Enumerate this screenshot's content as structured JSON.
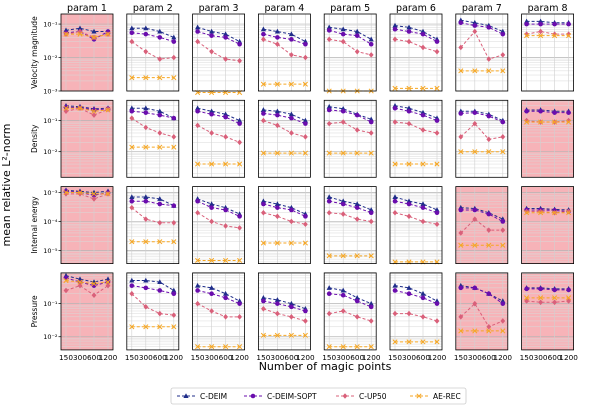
{
  "chart_data": {
    "type": "line",
    "ylabel": "mean relative L²-norm",
    "xlabel": "Number of magic points",
    "yscale": "log",
    "x": [
      150,
      300,
      600,
      1200
    ],
    "xticks": [
      "150",
      "300",
      "600",
      "1200"
    ],
    "grid": true,
    "legend_position": "bottom",
    "columns": [
      "param 1",
      "param 2",
      "param 3",
      "param 4",
      "param 5",
      "param 6",
      "param 7",
      "param 8"
    ],
    "rows": [
      {
        "label": "Velocity magnitude",
        "ylim": [
          0.001,
          0.2
        ],
        "yticks": [
          {
            "v": 0.1,
            "t": "10⁻¹"
          },
          {
            "v": 0.01,
            "t": "10⁻²"
          },
          {
            "v": 0.001,
            "t": "10⁻³"
          }
        ]
      },
      {
        "label": "Density",
        "ylim": [
          0.0015,
          0.45
        ],
        "yticks": [
          {
            "v": 0.1,
            "t": "10⁻¹"
          },
          {
            "v": 0.01,
            "t": "10⁻²"
          }
        ]
      },
      {
        "label": "Internal energy",
        "ylim": [
          3.5e-06,
          0.0016
        ],
        "yticks": [
          {
            "v": 0.001,
            "t": "10⁻³"
          },
          {
            "v": 0.0001,
            "t": "10⁻⁴"
          },
          {
            "v": 1e-05,
            "t": "10⁻⁵"
          }
        ]
      },
      {
        "label": "Pressure",
        "ylim": [
          0.004,
          0.85
        ],
        "yticks": [
          {
            "v": 0.1,
            "t": "10⁻¹"
          },
          {
            "v": 0.01,
            "t": "10⁻²"
          }
        ]
      }
    ],
    "highlighted": [
      [
        0
      ],
      [
        0,
        7
      ],
      [
        0,
        6,
        7
      ],
      [
        0,
        6,
        7
      ]
    ],
    "series": [
      {
        "name": "C-DEIM",
        "color": "#1f2d8a",
        "marker": "triangle"
      },
      {
        "name": "C-DEIM-SOPT",
        "color": "#6a0dad",
        "marker": "circle"
      },
      {
        "name": "C-UP50",
        "color": "#d9607a",
        "marker": "diamond"
      },
      {
        "name": "AE-REC",
        "color": "#f5a623",
        "marker": "x"
      }
    ],
    "values": [
      [
        {
          "C-DEIM": [
            0.065,
            0.075,
            0.06,
            0.06
          ],
          "C-DEIM-SOPT": [
            0.055,
            0.06,
            0.035,
            0.06
          ],
          "C-UP50": [
            0.05,
            0.06,
            0.04,
            0.05
          ],
          "AE-REC": [
            0.05,
            0.05,
            0.04,
            0.05
          ]
        },
        {
          "C-DEIM": [
            0.075,
            0.075,
            0.06,
            0.04
          ],
          "C-DEIM-SOPT": [
            0.055,
            0.05,
            0.04,
            0.03
          ],
          "C-UP50": [
            0.03,
            0.015,
            0.009,
            0.01
          ],
          "AE-REC": [
            0.0025,
            0.0025,
            0.0025,
            0.0025
          ]
        },
        {
          "C-DEIM": [
            0.08,
            0.06,
            0.05,
            0.03
          ],
          "C-DEIM-SOPT": [
            0.06,
            0.045,
            0.04,
            0.025
          ],
          "C-UP50": [
            0.03,
            0.015,
            0.009,
            0.008
          ],
          "AE-REC": [
            0.0009,
            0.0009,
            0.0009,
            0.0009
          ]
        },
        {
          "C-DEIM": [
            0.07,
            0.06,
            0.05,
            0.03
          ],
          "C-DEIM-SOPT": [
            0.05,
            0.04,
            0.035,
            0.025
          ],
          "C-UP50": [
            0.035,
            0.025,
            0.012,
            0.01
          ],
          "AE-REC": [
            0.0016,
            0.0016,
            0.0016,
            0.0016
          ]
        },
        {
          "C-DEIM": [
            0.08,
            0.07,
            0.06,
            0.035
          ],
          "C-DEIM-SOPT": [
            0.065,
            0.05,
            0.045,
            0.025
          ],
          "C-UP50": [
            0.035,
            0.03,
            0.015,
            0.012
          ],
          "AE-REC": [
            0.001,
            0.001,
            0.001,
            0.001
          ]
        },
        {
          "C-DEIM": [
            0.09,
            0.08,
            0.06,
            0.035
          ],
          "C-DEIM-SOPT": [
            0.07,
            0.06,
            0.05,
            0.03
          ],
          "C-UP50": [
            0.035,
            0.03,
            0.02,
            0.015
          ],
          "AE-REC": [
            0.0012,
            0.0012,
            0.0012,
            0.0012
          ]
        },
        {
          "C-DEIM": [
            0.13,
            0.11,
            0.09,
            0.06
          ],
          "C-DEIM-SOPT": [
            0.11,
            0.09,
            0.08,
            0.05
          ],
          "C-UP50": [
            0.02,
            0.06,
            0.009,
            0.012
          ],
          "AE-REC": [
            0.004,
            0.004,
            0.004,
            0.004
          ]
        },
        {
          "C-DEIM": [
            0.12,
            0.12,
            0.11,
            0.11
          ],
          "C-DEIM-SOPT": [
            0.1,
            0.1,
            0.1,
            0.1
          ],
          "C-UP50": [
            0.05,
            0.06,
            0.05,
            0.05
          ],
          "AE-REC": [
            0.045,
            0.045,
            0.045,
            0.045
          ]
        }
      ],
      [
        {
          "C-DEIM": [
            0.3,
            0.28,
            0.24,
            0.25
          ],
          "C-DEIM-SOPT": [
            0.27,
            0.26,
            0.22,
            0.24
          ],
          "C-UP50": [
            0.2,
            0.25,
            0.15,
            0.23
          ],
          "AE-REC": [
            0.25,
            0.25,
            0.2,
            0.22
          ]
        },
        {
          "C-DEIM": [
            0.25,
            0.25,
            0.2,
            0.12
          ],
          "C-DEIM-SOPT": [
            0.2,
            0.18,
            0.15,
            0.12
          ],
          "C-UP50": [
            0.12,
            0.06,
            0.04,
            0.03
          ],
          "AE-REC": [
            0.014,
            0.014,
            0.014,
            0.014
          ]
        },
        {
          "C-DEIM": [
            0.25,
            0.2,
            0.16,
            0.1
          ],
          "C-DEIM-SOPT": [
            0.2,
            0.16,
            0.13,
            0.08
          ],
          "C-UP50": [
            0.07,
            0.04,
            0.03,
            0.02
          ],
          "AE-REC": [
            0.004,
            0.004,
            0.004,
            0.004
          ]
        },
        {
          "C-DEIM": [
            0.22,
            0.2,
            0.16,
            0.1
          ],
          "C-DEIM-SOPT": [
            0.17,
            0.15,
            0.12,
            0.08
          ],
          "C-UP50": [
            0.1,
            0.07,
            0.04,
            0.03
          ],
          "AE-REC": [
            0.009,
            0.009,
            0.009,
            0.009
          ]
        },
        {
          "C-DEIM": [
            0.28,
            0.24,
            0.16,
            0.11
          ],
          "C-DEIM-SOPT": [
            0.22,
            0.2,
            0.15,
            0.09
          ],
          "C-UP50": [
            0.08,
            0.09,
            0.05,
            0.04
          ],
          "AE-REC": [
            0.009,
            0.009,
            0.009,
            0.009
          ]
        },
        {
          "C-DEIM": [
            0.3,
            0.25,
            0.18,
            0.12
          ],
          "C-DEIM-SOPT": [
            0.25,
            0.2,
            0.15,
            0.1
          ],
          "C-UP50": [
            0.09,
            0.08,
            0.05,
            0.04
          ],
          "AE-REC": [
            0.004,
            0.004,
            0.004,
            0.004
          ]
        },
        {
          "C-DEIM": [
            0.2,
            0.2,
            0.16,
            0.1
          ],
          "C-DEIM-SOPT": [
            0.17,
            0.18,
            0.14,
            0.09
          ],
          "C-UP50": [
            0.03,
            0.08,
            0.025,
            0.03
          ],
          "AE-REC": [
            0.01,
            0.01,
            0.01,
            0.01
          ]
        },
        {
          "C-DEIM": [
            0.22,
            0.22,
            0.2,
            0.2
          ],
          "C-DEIM-SOPT": [
            0.2,
            0.2,
            0.18,
            0.18
          ],
          "C-UP50": [
            0.1,
            0.09,
            0.09,
            0.1
          ],
          "AE-REC": [
            0.09,
            0.09,
            0.09,
            0.09
          ]
        }
      ],
      [
        {
          "C-DEIM": [
            0.0012,
            0.0011,
            0.001,
            0.0011
          ],
          "C-DEIM-SOPT": [
            0.0011,
            0.001,
            0.0008,
            0.001
          ],
          "C-UP50": [
            0.0009,
            0.0009,
            0.0006,
            0.0009
          ],
          "AE-REC": [
            0.001,
            0.001,
            0.0009,
            0.0009
          ]
        },
        {
          "C-DEIM": [
            0.0007,
            0.0007,
            0.0006,
            0.00035
          ],
          "C-DEIM-SOPT": [
            0.0005,
            0.0005,
            0.0004,
            0.00035
          ],
          "C-UP50": [
            0.0003,
            0.00012,
            9e-05,
            9e-05
          ],
          "AE-REC": [
            2e-05,
            2e-05,
            2e-05,
            2e-05
          ]
        },
        {
          "C-DEIM": [
            0.0006,
            0.0004,
            0.0003,
            0.00018
          ],
          "C-DEIM-SOPT": [
            0.0005,
            0.0003,
            0.00025,
            0.00015
          ],
          "C-UP50": [
            0.0002,
            0.0001,
            7e-05,
            6e-05
          ],
          "AE-REC": [
            4.5e-06,
            4.5e-06,
            4.5e-06,
            4.5e-06
          ]
        },
        {
          "C-DEIM": [
            0.0005,
            0.0004,
            0.0003,
            0.00018
          ],
          "C-DEIM-SOPT": [
            0.0004,
            0.0003,
            0.00025,
            0.00015
          ],
          "C-UP50": [
            0.0002,
            0.00015,
            0.0001,
            8e-05
          ],
          "AE-REC": [
            1.8e-05,
            1.8e-05,
            1.8e-05,
            1.8e-05
          ]
        },
        {
          "C-DEIM": [
            0.0007,
            0.0005,
            0.0004,
            0.00025
          ],
          "C-DEIM-SOPT": [
            0.0005,
            0.0004,
            0.0003,
            0.0002
          ],
          "C-UP50": [
            0.0002,
            0.00018,
            0.00012,
            0.0001
          ],
          "AE-REC": [
            6.5e-06,
            6.5e-06,
            6.5e-06,
            6.5e-06
          ]
        },
        {
          "C-DEIM": [
            0.0007,
            0.0005,
            0.0004,
            0.00025
          ],
          "C-DEIM-SOPT": [
            0.0005,
            0.0004,
            0.0003,
            0.0002
          ],
          "C-UP50": [
            0.0002,
            0.00015,
            0.0001,
            8e-05
          ],
          "AE-REC": [
            4e-06,
            4e-06,
            4e-06,
            4e-06
          ]
        },
        {
          "C-DEIM": [
            0.0003,
            0.00028,
            0.0002,
            0.00012
          ],
          "C-DEIM-SOPT": [
            0.00025,
            0.00025,
            0.00018,
            0.0001
          ],
          "C-UP50": [
            4e-05,
            0.00012,
            5e-05,
            5e-05
          ],
          "AE-REC": [
            1.5e-05,
            1.5e-05,
            1.5e-05,
            1.5e-05
          ]
        },
        {
          "C-DEIM": [
            0.00028,
            0.00028,
            0.00026,
            0.00025
          ],
          "C-DEIM-SOPT": [
            0.00025,
            0.00025,
            0.00024,
            0.00022
          ],
          "C-UP50": [
            0.00022,
            0.00022,
            0.0002,
            0.00022
          ],
          "AE-REC": [
            0.0002,
            0.0002,
            0.0002,
            0.0002
          ]
        }
      ],
      [
        {
          "C-DEIM": [
            0.7,
            0.55,
            0.45,
            0.55
          ],
          "C-DEIM-SOPT": [
            0.6,
            0.45,
            0.35,
            0.45
          ],
          "C-UP50": [
            0.25,
            0.35,
            0.18,
            0.35
          ],
          "AE-REC": [
            0.5,
            0.45,
            0.4,
            0.45
          ]
        },
        {
          "C-DEIM": [
            0.5,
            0.5,
            0.45,
            0.25
          ],
          "C-DEIM-SOPT": [
            0.35,
            0.3,
            0.25,
            0.2
          ],
          "C-UP50": [
            0.2,
            0.08,
            0.05,
            0.045
          ],
          "AE-REC": [
            0.02,
            0.02,
            0.02,
            0.02
          ]
        },
        {
          "C-DEIM": [
            0.35,
            0.3,
            0.2,
            0.12
          ],
          "C-DEIM-SOPT": [
            0.25,
            0.2,
            0.15,
            0.1
          ],
          "C-UP50": [
            0.1,
            0.06,
            0.04,
            0.04
          ],
          "AE-REC": [
            0.005,
            0.005,
            0.005,
            0.005
          ]
        },
        {
          "C-DEIM": [
            0.15,
            0.13,
            0.1,
            0.07
          ],
          "C-DEIM-SOPT": [
            0.12,
            0.1,
            0.08,
            0.06
          ],
          "C-UP50": [
            0.07,
            0.05,
            0.04,
            0.03
          ],
          "AE-REC": [
            0.011,
            0.011,
            0.011,
            0.011
          ]
        },
        {
          "C-DEIM": [
            0.3,
            0.25,
            0.15,
            0.1
          ],
          "C-DEIM-SOPT": [
            0.2,
            0.18,
            0.12,
            0.08
          ],
          "C-UP50": [
            0.05,
            0.06,
            0.04,
            0.03
          ],
          "AE-REC": [
            0.005,
            0.005,
            0.005,
            0.005
          ]
        },
        {
          "C-DEIM": [
            0.35,
            0.3,
            0.2,
            0.12
          ],
          "C-DEIM-SOPT": [
            0.25,
            0.2,
            0.15,
            0.1
          ],
          "C-UP50": [
            0.05,
            0.05,
            0.04,
            0.03
          ],
          "AE-REC": [
            0.007,
            0.007,
            0.007,
            0.007
          ]
        },
        {
          "C-DEIM": [
            0.35,
            0.3,
            0.2,
            0.12
          ],
          "C-DEIM-SOPT": [
            0.3,
            0.3,
            0.2,
            0.1
          ],
          "C-UP50": [
            0.04,
            0.1,
            0.02,
            0.03
          ],
          "AE-REC": [
            0.015,
            0.015,
            0.015,
            0.015
          ]
        },
        {
          "C-DEIM": [
            0.3,
            0.3,
            0.28,
            0.28
          ],
          "C-DEIM-SOPT": [
            0.28,
            0.28,
            0.26,
            0.26
          ],
          "C-UP50": [
            0.12,
            0.11,
            0.11,
            0.12
          ],
          "AE-REC": [
            0.15,
            0.15,
            0.15,
            0.15
          ]
        }
      ]
    ]
  }
}
